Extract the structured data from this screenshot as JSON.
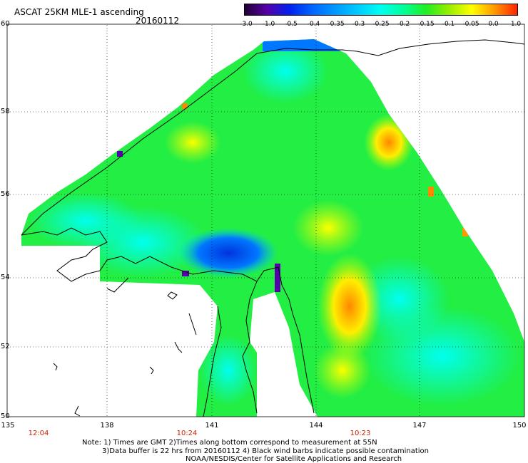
{
  "header": {
    "title": "ASCAT 25KM MLE-1 ascending",
    "date": "20160112"
  },
  "colorbar": {
    "labels": [
      "-3.0",
      "-1.0",
      "-0.5",
      "-0.4",
      "-0.35",
      "-0.3",
      "-0.25",
      "-0.2",
      "-0.15",
      "-0.1",
      "-0.05",
      "0.0",
      "1.0"
    ],
    "colors": [
      "#220033",
      "#5500aa",
      "#0022ee",
      "#0066ff",
      "#0099ff",
      "#00ccff",
      "#00ffee",
      "#00ff99",
      "#22ee22",
      "#99ee00",
      "#ffff00",
      "#ff9900",
      "#ff2200"
    ]
  },
  "axes": {
    "lat_labels": [
      "60",
      "58",
      "56",
      "54",
      "52",
      "50"
    ],
    "lon_labels": [
      "135",
      "138",
      "141",
      "144",
      "147",
      "150"
    ]
  },
  "times": [
    "12:04",
    "10:24",
    "10:23"
  ],
  "notes": {
    "line1": "Note: 1) Times are GMT 2)Times along bottom correspond to measurement at 55N",
    "line2": "3)Data buffer is 22 hrs from 20160112 4) Black wind barbs indicate possible contamination",
    "line3": "NOAA/NESDIS/Center for Satellite Applications and Research"
  }
}
